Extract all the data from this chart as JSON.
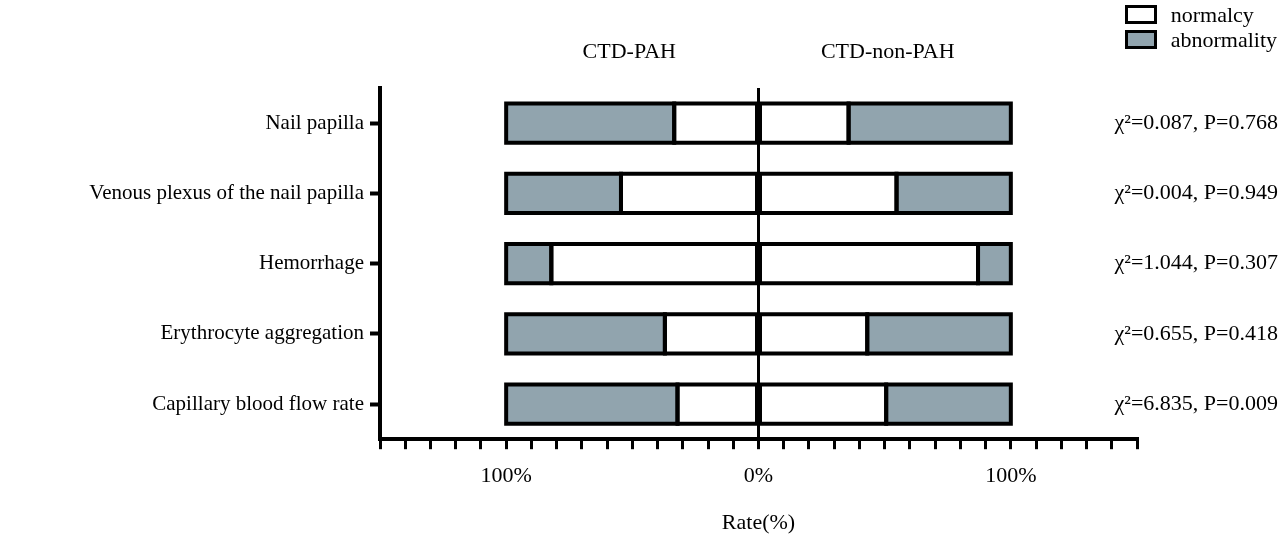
{
  "chart_data": {
    "type": "bar",
    "orientation": "horizontal",
    "stacked": true,
    "xlabel": "Rate(%)",
    "categories": [
      "Nail papilla",
      "Venous plexus of the nail papilla",
      "Hemorrhage",
      "Erythrocyte aggregation",
      "Capillary blood flow rate"
    ],
    "series": [
      {
        "color": "#ffffff",
        "values": [
          -33.4,
          -54.5,
          -82.1,
          -37.1,
          -32.1
        ]
      },
      {
        "name": "normalcy",
        "color": "#ffffff",
        "values": [
          35.7,
          54.7,
          87.0,
          43.1,
          50.6
        ]
      },
      {
        "color": "#91a4ae",
        "values": [
          -66.6,
          -45.5,
          -17.9,
          -62.9,
          -67.9
        ]
      },
      {
        "name": "abnormality",
        "color": "#91a4ae",
        "values": [
          64.3,
          45.3,
          13.0,
          56.9,
          49.4
        ]
      }
    ],
    "xlim": [
      -150,
      150
    ],
    "xticks": [
      {
        "value": -150,
        "label": null
      },
      {
        "value": -140,
        "label": null
      },
      {
        "value": -130,
        "label": null
      },
      {
        "value": -120,
        "label": null
      },
      {
        "value": -110,
        "label": null
      },
      {
        "value": -100,
        "label": "100%"
      },
      {
        "value": -90,
        "label": null
      },
      {
        "value": -80,
        "label": null
      },
      {
        "value": -70,
        "label": null
      },
      {
        "value": -60,
        "label": null
      },
      {
        "value": -50,
        "label": null
      },
      {
        "value": -40,
        "label": null
      },
      {
        "value": -30,
        "label": null
      },
      {
        "value": -20,
        "label": null
      },
      {
        "value": -10,
        "label": null
      },
      {
        "value": 0,
        "label": "0%"
      },
      {
        "value": 10,
        "label": null
      },
      {
        "value": 20,
        "label": null
      },
      {
        "value": 30,
        "label": null
      },
      {
        "value": 40,
        "label": null
      },
      {
        "value": 50,
        "label": null
      },
      {
        "value": 60,
        "label": null
      },
      {
        "value": 70,
        "label": null
      },
      {
        "value": 80,
        "label": null
      },
      {
        "value": 90,
        "label": null
      },
      {
        "value": 100,
        "label": "100%"
      },
      {
        "value": 110,
        "label": null
      },
      {
        "value": 120,
        "label": null
      },
      {
        "value": 130,
        "label": null
      },
      {
        "value": 140,
        "label": null
      },
      {
        "value": 150,
        "label": null
      }
    ],
    "ref_lines": [
      {
        "axis": "x",
        "value": 0,
        "color": "#000000"
      }
    ],
    "legend": "top right",
    "grid": false,
    "annotations": [
      "CTD-PAH",
      "CTD-non-PAH",
      "χ²=0.087, P=0.768",
      "χ²=0.004, P=0.949",
      "χ²=1.044, P=0.307",
      "χ²=0.655, P=0.418",
      "χ²=6.835, P=0.009"
    ]
  }
}
